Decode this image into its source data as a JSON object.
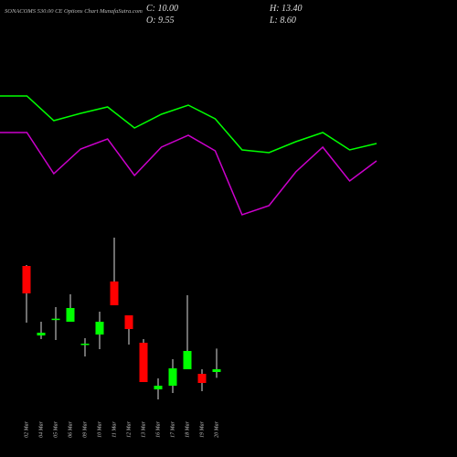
{
  "chart_data": {
    "type": "candlestick",
    "title": "SONACOMS 530.00 CE Options Chart MunafaSutra.com",
    "info": [
      "C: 10.00",
      "O: 9.55",
      "H: 13.40",
      "L: 8.60"
    ],
    "categories": [
      "02 Mar",
      "04 Mar",
      "05 Mar",
      "06 Mar",
      "09 Mar",
      "10 Mar",
      "11 Mar",
      "12 Mar",
      "13 Mar",
      "16 Mar",
      "17 Mar",
      "18 Mar",
      "19 Mar",
      "20 Mar"
    ],
    "open": [
      26.95,
      15.55,
      18.2,
      17.8,
      14.05,
      15.7,
      24.4,
      18.85,
      14.35,
      6.7,
      7.3,
      10.0,
      9.25,
      9.55
    ],
    "close": [
      22.45,
      16.0,
      18.3,
      20.05,
      14.2,
      17.8,
      20.5,
      16.6,
      7.9,
      7.3,
      10.15,
      13.0,
      7.75,
      10.0
    ],
    "high": [
      27.1,
      17.8,
      20.2,
      22.3,
      15.1,
      19.45,
      31.6,
      18.85,
      14.95,
      8.5,
      11.65,
      22.15,
      10.0,
      13.4
    ],
    "low": [
      17.65,
      14.95,
      14.8,
      17.8,
      12.1,
      13.3,
      20.5,
      14.05,
      7.9,
      5.05,
      6.1,
      10.0,
      6.4,
      8.6
    ],
    "up_color": "#00ff00",
    "down_color": "#ff0000",
    "ylim": [
      4.6,
      31.6
    ],
    "x": [
      0,
      1,
      2,
      3,
      4,
      5,
      6,
      7,
      8,
      9,
      10,
      11,
      12,
      13,
      14
    ],
    "xlim": [
      0,
      14
    ],
    "y2lim": [
      0,
      100
    ],
    "series": [
      {
        "color": "#00ff00",
        "axis": "y2",
        "values": [
          77.5,
          77.5,
          64,
          68,
          71.5,
          60,
          67.5,
          72.5,
          65,
          48,
          46.5,
          52.5,
          57.5,
          48,
          51.5
        ]
      },
      {
        "color": "#cc00cc",
        "axis": "y2",
        "values": [
          57.5,
          57.5,
          35,
          48.5,
          54,
          34,
          49.5,
          56,
          47.5,
          12.5,
          17.5,
          36,
          49.5,
          31,
          42
        ]
      }
    ]
  }
}
